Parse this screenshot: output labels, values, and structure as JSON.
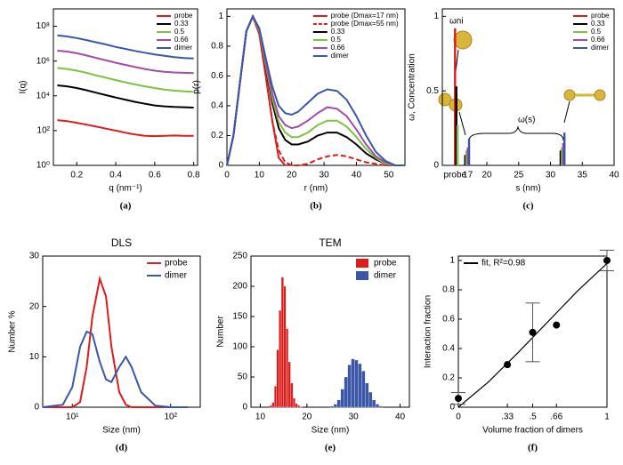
{
  "chart_data": [
    {
      "type": "line",
      "caption": "(a)",
      "xlabel": "q (nm⁻¹)",
      "ylabel": "I(q)",
      "ylog": true,
      "xlim": [
        0.08,
        0.82
      ],
      "xticks": [
        0.2,
        0.4,
        0.6,
        0.8
      ],
      "ylim": [
        1,
        1000000000
      ],
      "yticks": [
        {
          "value": 1,
          "label": "10⁰"
        },
        {
          "value": 100,
          "label": "10²"
        },
        {
          "value": 10000,
          "label": "10⁴"
        },
        {
          "value": 1000000,
          "label": "10⁶"
        },
        {
          "value": 100000000,
          "label": "10⁸"
        }
      ],
      "legend": "upper right",
      "x": [
        0.1,
        0.15,
        0.2,
        0.25,
        0.3,
        0.35,
        0.4,
        0.45,
        0.5,
        0.55,
        0.6,
        0.65,
        0.7,
        0.75,
        0.8
      ],
      "series": [
        {
          "name": "probe",
          "color": "#dd1c1c",
          "values": [
            400,
            350,
            280,
            220,
            170,
            130,
            100,
            75,
            60,
            50,
            48,
            50,
            52,
            50,
            50
          ]
        },
        {
          "name": "0.33",
          "color": "#000000",
          "values": [
            40000,
            35000,
            28000,
            21000,
            15000,
            11000,
            8000,
            6000,
            4500,
            3500,
            2800,
            2500,
            2300,
            2200,
            2100
          ]
        },
        {
          "name": "0.5",
          "color": "#7fc241",
          "values": [
            400000,
            350000,
            280000,
            210000,
            150000,
            110000,
            80000,
            60000,
            45000,
            35000,
            28000,
            23000,
            20000,
            18000,
            17000
          ]
        },
        {
          "name": "0.66",
          "color": "#a24ca8",
          "values": [
            4000000,
            3500000,
            2800000,
            2100000,
            1500000,
            1100000,
            800000,
            600000,
            450000,
            350000,
            280000,
            240000,
            220000,
            210000,
            200000
          ]
        },
        {
          "name": "dimer",
          "color": "#3a56a6",
          "values": [
            30000000,
            26000000,
            21000000,
            16000000,
            12000000,
            9000000,
            6500000,
            5000000,
            3800000,
            3000000,
            2400000,
            2000000,
            1700000,
            1500000,
            1400000
          ]
        }
      ]
    },
    {
      "type": "line",
      "caption": "(b)",
      "xlabel": "r (nm)",
      "ylabel": "p(r)",
      "xlim": [
        0,
        55
      ],
      "xticks": [
        0,
        10,
        20,
        30,
        40,
        50
      ],
      "ylim": [
        0,
        1.05
      ],
      "yticks": [
        0,
        0.2,
        0.4,
        0.6,
        0.8,
        1
      ],
      "legend": "upper right",
      "x": [
        0,
        2,
        4,
        6,
        8,
        10,
        12,
        14,
        16,
        18,
        20,
        22,
        25,
        28,
        31,
        34,
        37,
        40,
        43,
        46,
        49,
        52,
        55
      ],
      "series": [
        {
          "name": "probe (Dmax=17 nm)",
          "color": "#dd1c1c",
          "values": [
            0,
            0.2,
            0.55,
            0.9,
            1,
            0.88,
            0.6,
            0.3,
            0.05,
            0,
            null,
            null,
            null,
            null,
            null,
            null,
            null,
            null,
            null,
            null,
            null,
            null,
            null
          ]
        },
        {
          "name": "probe (Dmax=55 nm)",
          "color": "#dd1c1c",
          "dash": true,
          "values": [
            0,
            0.2,
            0.55,
            0.9,
            1,
            0.88,
            0.6,
            0.3,
            0.1,
            0.02,
            0,
            0,
            0.01,
            0.04,
            0.06,
            0.07,
            0.06,
            0.04,
            0.02,
            0.01,
            0,
            0,
            0
          ]
        },
        {
          "name": "0.33",
          "color": "#000000",
          "values": [
            0,
            0.2,
            0.55,
            0.9,
            1,
            0.9,
            0.66,
            0.42,
            0.25,
            0.17,
            0.14,
            0.14,
            0.16,
            0.2,
            0.22,
            0.22,
            0.19,
            0.14,
            0.08,
            0.04,
            0.01,
            0,
            0
          ]
        },
        {
          "name": "0.5",
          "color": "#7fc241",
          "values": [
            0,
            0.2,
            0.55,
            0.9,
            1,
            0.9,
            0.67,
            0.45,
            0.29,
            0.22,
            0.19,
            0.19,
            0.22,
            0.27,
            0.3,
            0.3,
            0.26,
            0.19,
            0.11,
            0.05,
            0.01,
            0,
            0
          ]
        },
        {
          "name": "0.66",
          "color": "#a24ca8",
          "values": [
            0,
            0.2,
            0.55,
            0.9,
            1,
            0.91,
            0.69,
            0.48,
            0.33,
            0.27,
            0.25,
            0.26,
            0.3,
            0.35,
            0.39,
            0.38,
            0.33,
            0.24,
            0.14,
            0.06,
            0.02,
            0,
            0
          ]
        },
        {
          "name": "dimer",
          "color": "#3a56a6",
          "values": [
            0,
            0.2,
            0.55,
            0.9,
            1,
            0.92,
            0.72,
            0.53,
            0.4,
            0.35,
            0.34,
            0.36,
            0.42,
            0.48,
            0.51,
            0.5,
            0.44,
            0.33,
            0.2,
            0.09,
            0.03,
            0,
            0
          ]
        }
      ]
    },
    {
      "type": "bar",
      "caption": "(c)",
      "xlabel": "s (nm)",
      "ylabel": "ω, Concentration",
      "xlim": [
        13,
        40
      ],
      "xticks": [
        {
          "value": 15,
          "label": "probe"
        },
        17,
        20,
        25,
        30,
        35,
        40
      ],
      "ylim": [
        0,
        1.05
      ],
      "yticks": [
        0,
        0.5,
        1
      ],
      "legend": "upper right",
      "annotations": [
        "ωni",
        "ω(s)"
      ],
      "series": [
        {
          "name": "probe",
          "color": "#dd1c1c",
          "x": [
            15.0
          ],
          "values": [
            0.92
          ]
        },
        {
          "name": "0.33",
          "color": "#000000",
          "x": [
            15.2,
            16.6,
            31.6
          ],
          "values": [
            0.53,
            0.07,
            0.1
          ]
        },
        {
          "name": "0.5",
          "color": "#7fc241",
          "x": [
            15.4,
            16.8,
            31.8
          ],
          "values": [
            0.27,
            0.1,
            0.12
          ]
        },
        {
          "name": "0.66",
          "color": "#a24ca8",
          "x": [
            17.0,
            32.0
          ],
          "values": [
            0.12,
            0.15
          ]
        },
        {
          "name": "dimer",
          "color": "#3a56a6",
          "x": [
            17.2,
            32.2
          ],
          "values": [
            0.18,
            0.22
          ]
        }
      ]
    },
    {
      "type": "line",
      "caption": "(d)",
      "title": "DLS",
      "xlabel": "Size (nm)",
      "ylabel": "Number %",
      "xlog": true,
      "xlim": [
        5,
        200
      ],
      "xticks": [
        {
          "value": 10,
          "label": "10¹"
        },
        {
          "value": 100,
          "label": "10²"
        }
      ],
      "ylim": [
        0,
        30
      ],
      "yticks": [
        0,
        10,
        20,
        30
      ],
      "legend": "upper right",
      "x": [
        5,
        8,
        10,
        12,
        14,
        16,
        19,
        22,
        25,
        30,
        35,
        40,
        50,
        70,
        100,
        150
      ],
      "series": [
        {
          "name": "probe",
          "color": "#dd1c1c",
          "values": [
            0,
            0,
            0,
            1,
            8,
            18,
            25.5,
            22,
            12,
            3,
            0.5,
            0,
            0,
            0,
            0,
            0
          ]
        },
        {
          "name": "dimer",
          "color": "#3a56a6",
          "values": [
            0,
            0.5,
            4,
            12,
            15,
            14.5,
            9,
            5.5,
            5,
            8,
            10,
            8,
            3,
            0.3,
            0,
            0
          ]
        }
      ]
    },
    {
      "type": "histogram",
      "caption": "(e)",
      "title": "TEM",
      "xlabel": "Size (nm)",
      "ylabel": "Number",
      "xlim": [
        8,
        42
      ],
      "xticks": [
        10,
        20,
        30,
        40
      ],
      "ylim": [
        0,
        250
      ],
      "yticks": [
        0,
        50,
        100,
        150,
        200,
        250
      ],
      "legend": "upper right",
      "series": [
        {
          "name": "probe",
          "color": "#dd1c1c",
          "bins": [
            12,
            12.5,
            13,
            13.5,
            14,
            14.5,
            15,
            15.5,
            16,
            16.5,
            17,
            17.5,
            18,
            18.5,
            19
          ],
          "values": [
            3,
            8,
            35,
            95,
            160,
            215,
            200,
            130,
            75,
            40,
            15,
            6,
            3,
            1
          ]
        },
        {
          "name": "dimer",
          "color": "#3a56a6",
          "bins": [
            25,
            25.75,
            26.5,
            27.25,
            28,
            28.75,
            29.5,
            30.25,
            31,
            31.75,
            32.5,
            33.25,
            34,
            34.75,
            35.5,
            36.25
          ],
          "values": [
            2,
            5,
            12,
            30,
            50,
            70,
            80,
            78,
            72,
            60,
            40,
            25,
            12,
            5,
            2
          ]
        }
      ]
    },
    {
      "type": "scatter",
      "caption": "(f)",
      "xlabel": "Volume fraction of dimers",
      "ylabel": "Interaction fraction",
      "xlim": [
        0,
        1
      ],
      "xticks": [
        0,
        {
          "value": 0.33,
          "label": ".33"
        },
        {
          "value": 0.5,
          "label": ".5"
        },
        {
          "value": 0.66,
          "label": ".66"
        },
        1
      ],
      "ylim": [
        0,
        1.03
      ],
      "yticks": [
        0,
        0.2,
        0.4,
        0.6,
        0.8,
        1
      ],
      "legend": "upper left",
      "series": [
        {
          "name": "fit, R²=0.98",
          "color": "#000000",
          "x": [
            0,
            0.2,
            0.4,
            0.6,
            0.8,
            1
          ],
          "values": [
            0,
            0.17,
            0.37,
            0.58,
            0.79,
            0.98
          ]
        }
      ],
      "points": {
        "color": "#000000",
        "x": [
          0,
          0.33,
          0.5,
          0.66,
          1
        ],
        "values": [
          0.06,
          0.29,
          0.51,
          0.56,
          1
        ],
        "errors": [
          0.04,
          null,
          0.2,
          null,
          0.07
        ]
      }
    }
  ]
}
